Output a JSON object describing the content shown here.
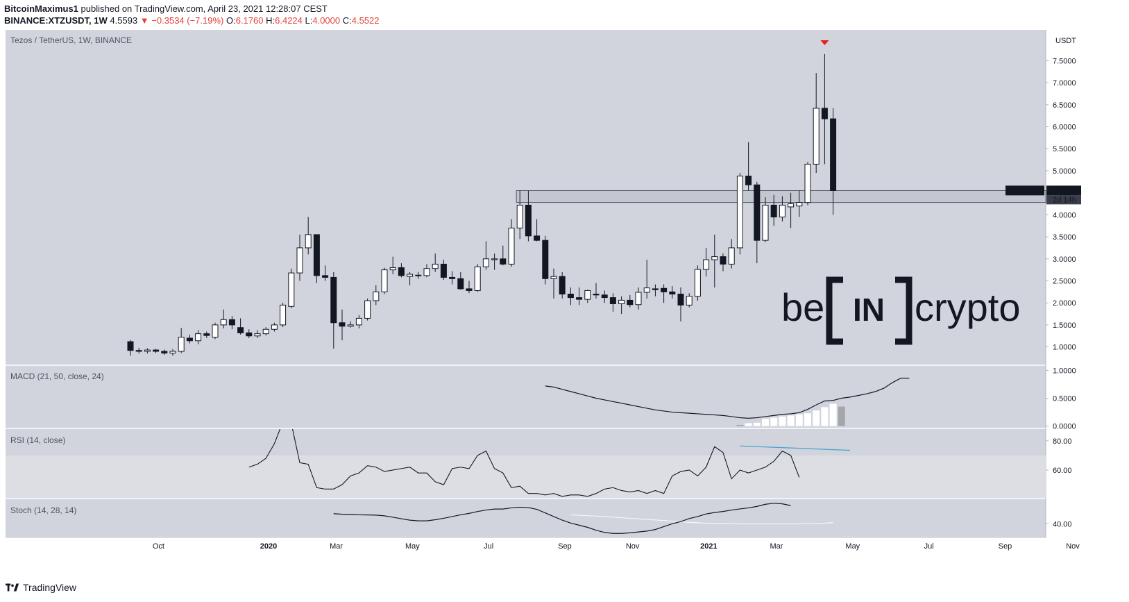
{
  "header": {
    "author": "BitcoinMaximus1",
    "published_text": "published on TradingView.com, April 23, 2021 12:28:07 CEST",
    "symbol_line": "BINANCE:XTZUSDT, 1W",
    "last": "4.5593",
    "arrow": "▼",
    "change": "−0.3534 (−7.19%)",
    "o_label": "O:",
    "o_val": "6.1760",
    "h_label": "H:",
    "h_val": "6.4224",
    "l_label": "L:",
    "l_val": "4.0000",
    "c_label": "C:",
    "c_val": "4.5522"
  },
  "footer": {
    "brand": "TradingView"
  },
  "colors": {
    "pane_bg": "#d1d4dc",
    "bull_body": "#ffffff",
    "bear_body": "#131722",
    "wick": "#131722",
    "divergence_line": "#4fa3d1",
    "signal_line": "#f5f5f5",
    "marker": "#e5201c",
    "rsi_band": "#dcdee4"
  },
  "watermark": {
    "left": "be",
    "box": "IN",
    "right": "crypto"
  },
  "chart_data": [
    {
      "type": "candlestick",
      "title": "Tezos / TetherUS, 1W, BINANCE",
      "unit_label": "USDT",
      "ylim": [
        0.6,
        8.2
      ],
      "yticks": [
        "1.0000",
        "1.5000",
        "2.0000",
        "2.5000",
        "3.0000",
        "3.5000",
        "4.0000",
        "4.5000",
        "5.0000",
        "5.5000",
        "6.0000",
        "6.5000",
        "7.0000",
        "7.5000"
      ],
      "xticks": [
        {
          "label": "Oct",
          "bold": false,
          "week": 2
        },
        {
          "label": "2020",
          "bold": true,
          "week": 15
        },
        {
          "label": "Mar",
          "bold": false,
          "week": 23
        },
        {
          "label": "May",
          "bold": false,
          "week": 32
        },
        {
          "label": "Jul",
          "bold": false,
          "week": 41
        },
        {
          "label": "Sep",
          "bold": false,
          "week": 50
        },
        {
          "label": "Nov",
          "bold": false,
          "week": 58
        },
        {
          "label": "2021",
          "bold": true,
          "week": 67
        },
        {
          "label": "Mar",
          "bold": false,
          "week": 75
        },
        {
          "label": "May",
          "bold": false,
          "week": 84
        },
        {
          "label": "Jul",
          "bold": false,
          "week": 93
        },
        {
          "label": "Sep",
          "bold": false,
          "week": 102
        },
        {
          "label": "Nov",
          "bold": false,
          "week": 110
        }
      ],
      "ohlc": [
        [
          1.12,
          1.16,
          0.8,
          0.92
        ],
        [
          0.92,
          0.98,
          0.85,
          0.9
        ],
        [
          0.9,
          0.97,
          0.85,
          0.93
        ],
        [
          0.93,
          0.96,
          0.86,
          0.9
        ],
        [
          0.9,
          0.94,
          0.82,
          0.86
        ],
        [
          0.86,
          0.95,
          0.8,
          0.9
        ],
        [
          0.9,
          1.43,
          0.86,
          1.22
        ],
        [
          1.2,
          1.28,
          1.08,
          1.14
        ],
        [
          1.14,
          1.38,
          1.06,
          1.3
        ],
        [
          1.3,
          1.35,
          1.2,
          1.26
        ],
        [
          1.22,
          1.55,
          1.18,
          1.5
        ],
        [
          1.5,
          1.85,
          1.42,
          1.62
        ],
        [
          1.62,
          1.7,
          1.4,
          1.5
        ],
        [
          1.44,
          1.65,
          1.28,
          1.32
        ],
        [
          1.32,
          1.4,
          1.2,
          1.25
        ],
        [
          1.25,
          1.38,
          1.2,
          1.3
        ],
        [
          1.3,
          1.45,
          1.26,
          1.4
        ],
        [
          1.4,
          1.55,
          1.35,
          1.5
        ],
        [
          1.5,
          2.0,
          1.45,
          1.95
        ],
        [
          1.92,
          2.78,
          1.88,
          2.68
        ],
        [
          2.68,
          3.55,
          2.5,
          3.25
        ],
        [
          3.25,
          3.95,
          3.1,
          3.55
        ],
        [
          3.55,
          3.55,
          2.45,
          2.62
        ],
        [
          2.62,
          2.85,
          2.5,
          2.58
        ],
        [
          2.58,
          2.7,
          0.96,
          1.55
        ],
        [
          1.55,
          1.85,
          1.15,
          1.47
        ],
        [
          1.47,
          1.58,
          1.44,
          1.5
        ],
        [
          1.5,
          1.72,
          1.42,
          1.65
        ],
        [
          1.65,
          2.1,
          1.6,
          2.05
        ],
        [
          2.05,
          2.4,
          1.95,
          2.25
        ],
        [
          2.25,
          2.8,
          2.2,
          2.75
        ],
        [
          2.75,
          3.05,
          2.65,
          2.8
        ],
        [
          2.8,
          2.9,
          2.58,
          2.62
        ],
        [
          2.6,
          2.7,
          2.4,
          2.65
        ],
        [
          2.62,
          2.7,
          2.55,
          2.63
        ],
        [
          2.62,
          2.88,
          2.58,
          2.78
        ],
        [
          2.78,
          3.12,
          2.7,
          2.88
        ],
        [
          2.88,
          2.98,
          2.52,
          2.58
        ],
        [
          2.58,
          2.72,
          2.42,
          2.55
        ],
        [
          2.55,
          2.7,
          2.3,
          2.32
        ],
        [
          2.32,
          2.5,
          2.22,
          2.28
        ],
        [
          2.28,
          2.88,
          2.25,
          2.82
        ],
        [
          2.82,
          3.4,
          2.75,
          3.0
        ],
        [
          2.98,
          3.12,
          2.75,
          3.0
        ],
        [
          3.0,
          3.3,
          2.85,
          2.88
        ],
        [
          2.88,
          3.9,
          2.82,
          3.7
        ],
        [
          3.7,
          4.55,
          3.45,
          4.22
        ],
        [
          4.22,
          4.55,
          3.4,
          3.52
        ],
        [
          3.52,
          3.9,
          3.4,
          3.42
        ],
        [
          3.42,
          3.52,
          2.42,
          2.55
        ],
        [
          2.55,
          2.78,
          2.1,
          2.6
        ],
        [
          2.6,
          2.7,
          2.1,
          2.2
        ],
        [
          2.2,
          2.35,
          1.95,
          2.12
        ],
        [
          2.12,
          2.35,
          1.95,
          2.08
        ],
        [
          2.08,
          2.3,
          2.0,
          2.28
        ],
        [
          2.2,
          2.45,
          2.1,
          2.18
        ],
        [
          2.18,
          2.28,
          2.0,
          2.12
        ],
        [
          2.12,
          2.22,
          1.8,
          1.98
        ],
        [
          1.98,
          2.15,
          1.75,
          2.06
        ],
        [
          2.06,
          2.18,
          1.9,
          1.96
        ],
        [
          1.96,
          2.35,
          1.85,
          2.24
        ],
        [
          2.24,
          2.98,
          2.1,
          2.34
        ],
        [
          2.32,
          2.42,
          2.15,
          2.3
        ],
        [
          2.33,
          2.42,
          2.0,
          2.25
        ],
        [
          2.25,
          2.38,
          2.1,
          2.2
        ],
        [
          2.2,
          2.35,
          1.58,
          1.95
        ],
        [
          1.95,
          2.22,
          1.9,
          2.15
        ],
        [
          2.15,
          2.85,
          2.05,
          2.76
        ],
        [
          2.76,
          3.25,
          2.6,
          2.98
        ],
        [
          2.98,
          3.55,
          2.35,
          3.05
        ],
        [
          3.05,
          3.12,
          2.72,
          2.88
        ],
        [
          2.88,
          3.45,
          2.78,
          3.25
        ],
        [
          3.25,
          4.95,
          3.1,
          4.88
        ],
        [
          4.88,
          5.65,
          4.55,
          4.68
        ],
        [
          4.68,
          4.75,
          2.9,
          3.42
        ],
        [
          3.42,
          4.4,
          3.38,
          4.22
        ],
        [
          4.22,
          4.45,
          3.75,
          3.95
        ],
        [
          3.95,
          4.42,
          3.85,
          4.22
        ],
        [
          4.18,
          4.5,
          3.7,
          4.25
        ],
        [
          4.2,
          4.55,
          3.95,
          4.28
        ],
        [
          4.28,
          5.2,
          4.22,
          5.15
        ],
        [
          5.15,
          7.22,
          4.95,
          6.42
        ],
        [
          6.42,
          7.65,
          5.15,
          6.18
        ],
        [
          6.18,
          6.42,
          4.0,
          4.55
        ]
      ],
      "annotations": {
        "zone": {
          "low": 4.28,
          "high": 4.55,
          "from_week": 46
        },
        "last_price_label": "XTZUSDT",
        "last_price_value": "4.5522",
        "countdown": "2d 14h",
        "peak_marker_week": 82
      }
    },
    {
      "type": "line",
      "title": "MACD (21, 50, close, 24)",
      "ylim": [
        -0.03,
        1.08
      ],
      "yticks": [
        "0.0000",
        "0.5000",
        "1.0000"
      ],
      "start_week": 49,
      "macd": [
        0.72,
        0.7,
        0.66,
        0.62,
        0.58,
        0.54,
        0.5,
        0.47,
        0.44,
        0.41,
        0.38,
        0.35,
        0.32,
        0.29,
        0.27,
        0.25,
        0.24,
        0.23,
        0.22,
        0.21,
        0.2,
        0.19,
        0.17,
        0.15,
        0.14,
        0.15,
        0.17,
        0.19,
        0.21,
        0.22,
        0.24,
        0.3,
        0.38,
        0.45,
        0.46,
        0.5,
        0.52,
        0.55,
        0.58,
        0.62,
        0.68,
        0.78,
        0.86,
        0.86
      ],
      "histogram_start_week": 72,
      "histogram": [
        0.02,
        0.05,
        0.06,
        0.13,
        0.15,
        0.17,
        0.19,
        0.21,
        0.23,
        0.28,
        0.34,
        0.4,
        0.35
      ]
    },
    {
      "type": "line",
      "title": "RSI (14, close)",
      "ylim": [
        41,
        88
      ],
      "yticks": [
        "60.00",
        "80.00"
      ],
      "band": [
        30,
        70
      ],
      "start_week": 14,
      "values": [
        62,
        64,
        68,
        78,
        93,
        92,
        65,
        64,
        48,
        47,
        47,
        50,
        56,
        58,
        63,
        62,
        59,
        60,
        61,
        62,
        58,
        58,
        52,
        50,
        61,
        62,
        61,
        70,
        73,
        61,
        58,
        48,
        49,
        44,
        44,
        43,
        44,
        42,
        43,
        43,
        42,
        44,
        47,
        48,
        46,
        45,
        46,
        44,
        46,
        44,
        56,
        59,
        60,
        56,
        62,
        76,
        72,
        54,
        60,
        58,
        60,
        62,
        66,
        73,
        70,
        55
      ],
      "divergence": {
        "from_week": 72,
        "from_value": 76.5,
        "to_week": 85,
        "to_value": 73.5
      }
    },
    {
      "type": "line",
      "title": "Stoch (14, 28, 14)",
      "ylim": [
        31,
        57
      ],
      "yticks": [
        "40.00"
      ],
      "k_start_week": 24,
      "k": [
        47,
        46.6,
        46.4,
        46.2,
        46.1,
        46,
        45.5,
        44.5,
        43.5,
        42.5,
        42,
        42,
        42.8,
        43.8,
        45,
        46.2,
        47.2,
        48.5,
        49.5,
        50.2,
        50.2,
        51,
        51.5,
        51.2,
        50,
        47.5,
        45,
        42.5,
        40.5,
        39,
        37.5,
        35.5,
        34,
        33.3,
        33.3,
        33.7,
        34.3,
        34.9,
        36,
        38,
        40,
        41.5,
        43.6,
        45,
        46.8,
        47.8,
        48.5,
        49.5,
        50.3,
        51,
        52,
        53.5,
        54.2,
        53.8,
        52.6
      ],
      "d_start_week": 52,
      "d": [
        46.2,
        45.9,
        45.6,
        45.3,
        45.0,
        44.6,
        44.2,
        43.8,
        43.4,
        43.0,
        42.6,
        42.2,
        41.8,
        41.4,
        41.0,
        40.7,
        40.4,
        40.2,
        40.1,
        40.0,
        39.9,
        39.9,
        39.9,
        39.9,
        39.9,
        39.9,
        39.9,
        39.9,
        40.0,
        40.1,
        40.4,
        40.8
      ]
    }
  ]
}
